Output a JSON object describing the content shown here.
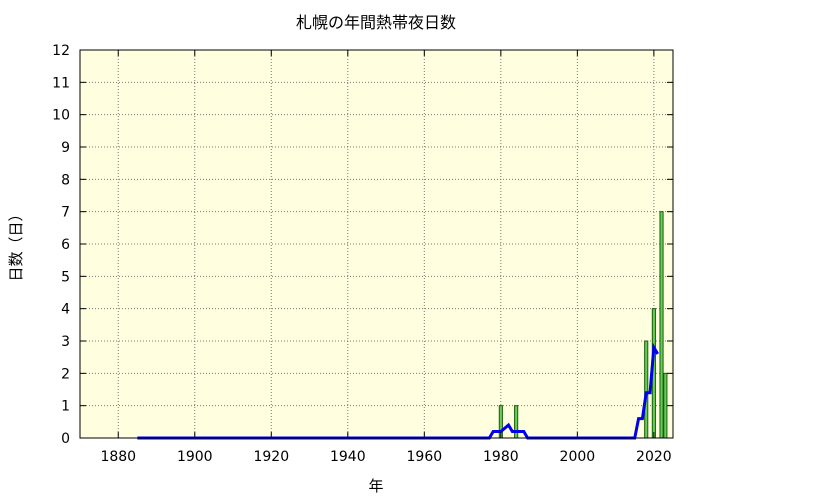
{
  "chart_data": {
    "type": "bar",
    "title": "札幌の年間熱帯夜日数",
    "xlabel": "年",
    "ylabel": "日数（日）",
    "xlim": [
      1870,
      2025
    ],
    "ylim": [
      0,
      12
    ],
    "x_ticks": [
      1880,
      1900,
      1920,
      1940,
      1960,
      1980,
      2000,
      2020
    ],
    "y_ticks": [
      0,
      1,
      2,
      3,
      4,
      5,
      6,
      7,
      8,
      9,
      10,
      11,
      12
    ],
    "grid": true,
    "colors": {
      "plot_background": "#ffffe0",
      "bar_fill": "#66cc55",
      "bar_stroke": "#1a5c12",
      "line": "#0000ee",
      "grid": "#777777"
    },
    "bars": {
      "x": [
        1980,
        1984,
        2018,
        2020,
        2022,
        2023
      ],
      "values": [
        1,
        1,
        3,
        4,
        7,
        2
      ]
    },
    "moving_average": {
      "x": [
        1885,
        1977,
        1978,
        1980,
        1982,
        1983,
        1984,
        1985,
        1986,
        1987,
        2015,
        2016,
        2017,
        2018,
        2019,
        2020,
        2021
      ],
      "values": [
        0,
        0,
        0.2,
        0.2,
        0.4,
        0.2,
        0.2,
        0.2,
        0.2,
        0,
        0,
        0.6,
        0.6,
        1.4,
        1.4,
        2.8,
        2.6
      ]
    }
  }
}
